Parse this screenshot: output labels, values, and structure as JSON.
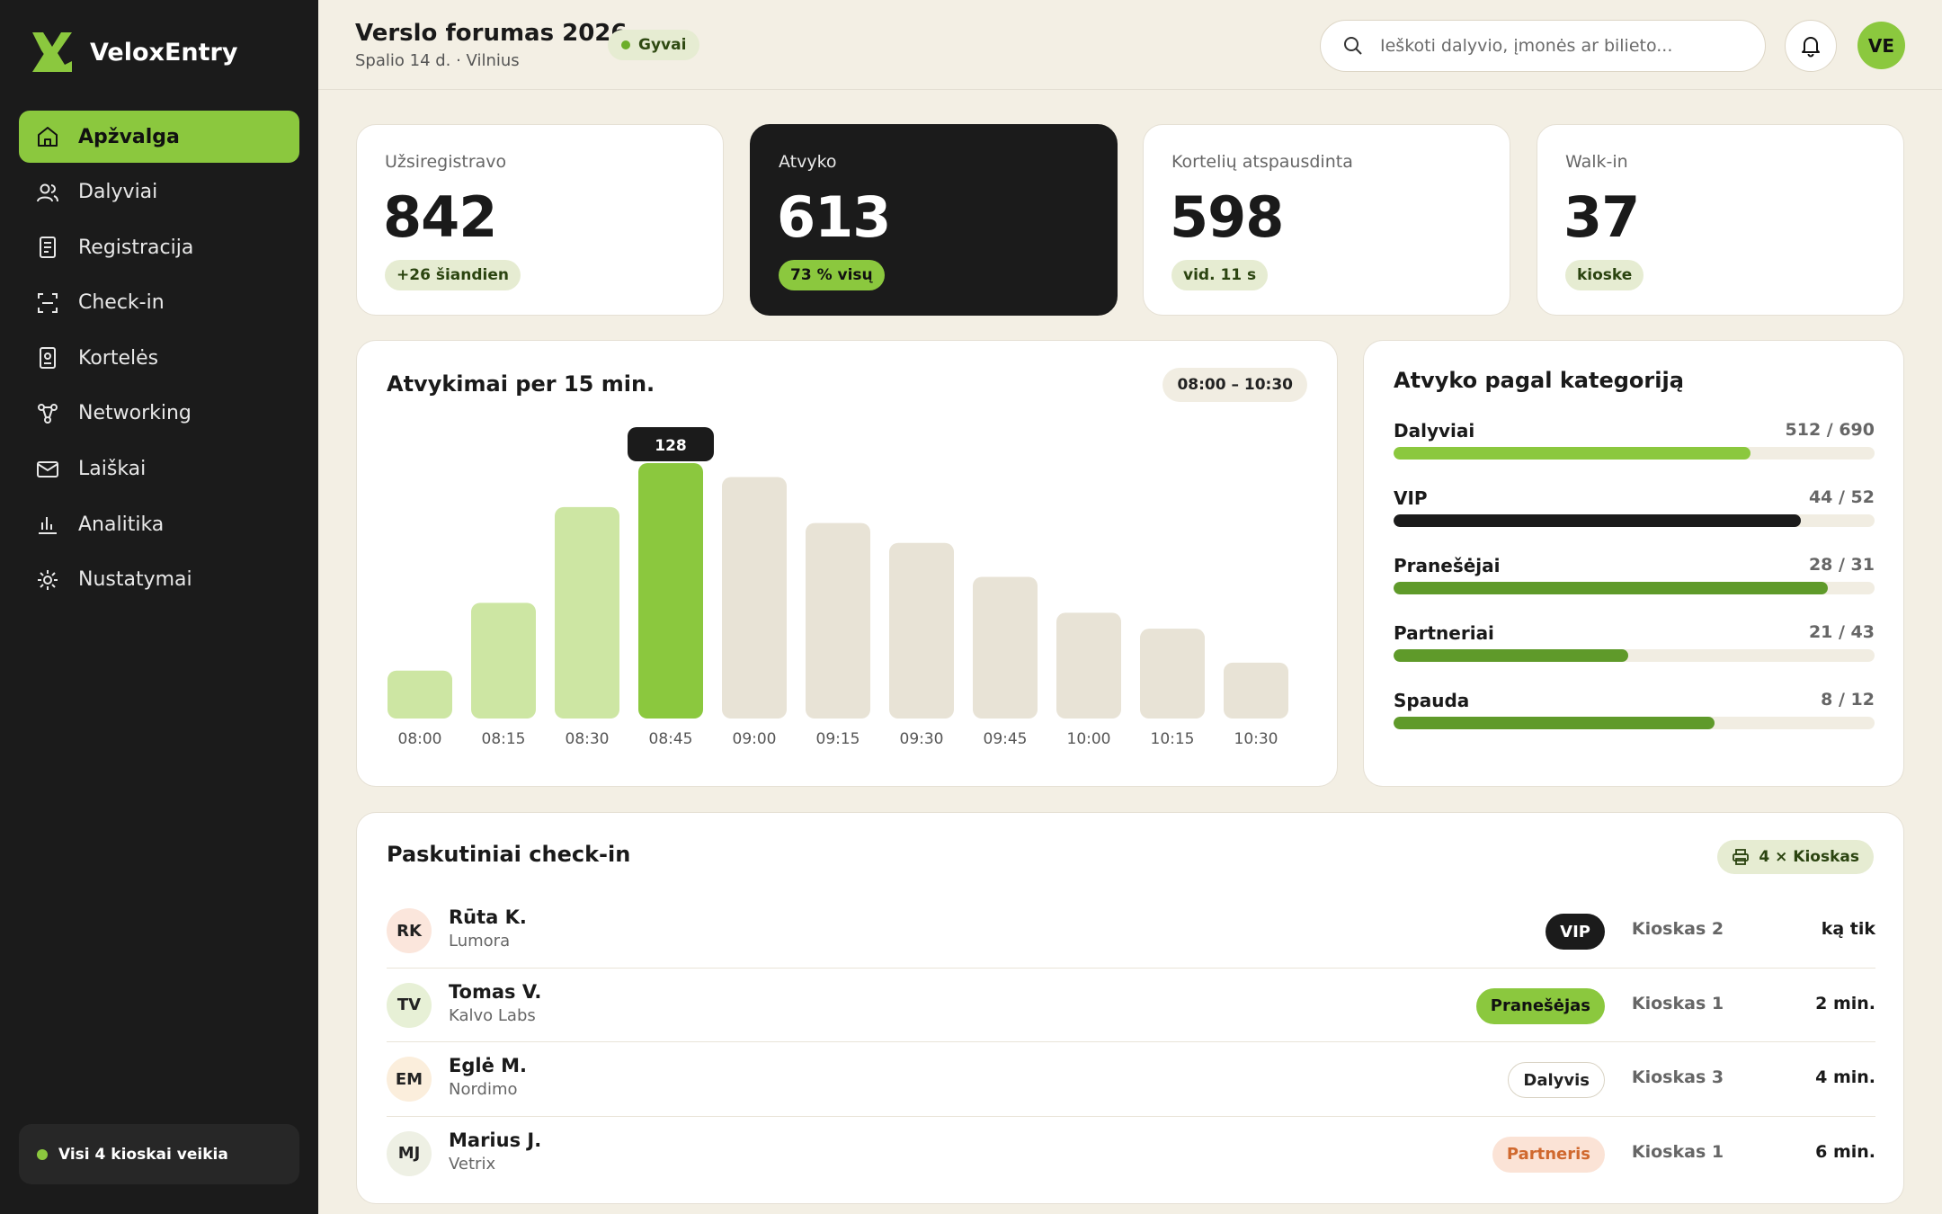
{
  "brand": {
    "name": "VeloxEntry",
    "logo_icon": "x-logo-icon",
    "accent": "#8bc83e"
  },
  "nav": [
    {
      "id": "apzvalga",
      "label": "Apžvalga",
      "icon": "home-icon",
      "active": true
    },
    {
      "id": "dalyviai",
      "label": "Dalyviai",
      "icon": "users-icon",
      "active": false
    },
    {
      "id": "registracija",
      "label": "Registracija",
      "icon": "form-icon",
      "active": false
    },
    {
      "id": "checkin",
      "label": "Check-in",
      "icon": "scan-icon",
      "active": false
    },
    {
      "id": "korteles",
      "label": "Kortelės",
      "icon": "badge-icon",
      "active": false
    },
    {
      "id": "networking",
      "label": "Networking",
      "icon": "network-icon",
      "active": false
    },
    {
      "id": "laiskai",
      "label": "Laiškai",
      "icon": "mail-icon",
      "active": false
    },
    {
      "id": "analitika",
      "label": "Analitika",
      "icon": "chart-icon",
      "active": false
    },
    {
      "id": "nustatymai",
      "label": "Nustatymai",
      "icon": "gear-icon",
      "active": false
    }
  ],
  "kiosk_status": {
    "text": "Visi 4 kioskai veikia",
    "color": "#8bc83e"
  },
  "header": {
    "title": "Verslo forumas 2026",
    "subtitle": "Spalio 14 d. · Vilnius",
    "live_label": "Gyvai",
    "search_placeholder": "Ieškoti dalyvio, įmonės ar bilieto...",
    "avatar_initials": "VE"
  },
  "stats": [
    {
      "label": "Užsiregistravo",
      "value": "842",
      "chip": "+26 šiandien"
    },
    {
      "label": "Atvyko",
      "value": "613",
      "chip": "73 % visų"
    },
    {
      "label": "Kortelių atspausdinta",
      "value": "598",
      "chip": "vid. 11 s"
    },
    {
      "label": "Walk-in",
      "value": "37",
      "chip": "kioske"
    }
  ],
  "chart": {
    "title": "Atvykimai per 15 min.",
    "range": "08:00 – 10:30"
  },
  "chart_data": {
    "type": "bar",
    "categories": [
      "08:00",
      "08:15",
      "08:30",
      "08:45",
      "09:00",
      "09:15",
      "09:30",
      "09:45",
      "10:00",
      "10:15",
      "10:30"
    ],
    "values": [
      24,
      58,
      106,
      128,
      121,
      98,
      88,
      71,
      53,
      45,
      28
    ],
    "highlight_index": 3,
    "highlight_label": "128",
    "colors": {
      "past": "#cde6a3",
      "current": "#8bc83e",
      "future": "#e8e3d6",
      "tooltip": "#1b1b1b"
    },
    "ylim": [
      0,
      128
    ]
  },
  "categories_card": {
    "title": "Atvyko pagal kategoriją",
    "items": [
      {
        "name": "Dalyviai",
        "arrived": 512,
        "total": 690,
        "text": "512 / 690",
        "color": "#8bc83e"
      },
      {
        "name": "VIP",
        "arrived": 44,
        "total": 52,
        "text": "44 / 52",
        "color": "#1b1b1b"
      },
      {
        "name": "Pranešėjai",
        "arrived": 28,
        "total": 31,
        "text": "28 / 31",
        "color": "#5f9a2a"
      },
      {
        "name": "Partneriai",
        "arrived": 21,
        "total": 43,
        "text": "21 / 43",
        "color": "#5f9a2a"
      },
      {
        "name": "Spauda",
        "arrived": 8,
        "total": 12,
        "text": "8 / 12",
        "color": "#5f9a2a"
      }
    ]
  },
  "recent": {
    "title": "Paskutiniai check-in",
    "kiosk_chip": "4 × Kioskas",
    "rows": [
      {
        "initials": "RK",
        "name": "Rūta K.",
        "org": "Lumora",
        "tag": "VIP",
        "tag_style": "vip",
        "kiosk": "Kioskas 2",
        "time": "ką tik",
        "avatar_bg": "#fbe6dc"
      },
      {
        "initials": "TV",
        "name": "Tomas V.",
        "org": "Kalvo Labs",
        "tag": "Pranešėjas",
        "tag_style": "speaker",
        "kiosk": "Kioskas 1",
        "time": "2 min.",
        "avatar_bg": "#e7f0d6"
      },
      {
        "initials": "EM",
        "name": "Eglė M.",
        "org": "Nordimo",
        "tag": "Dalyvis",
        "tag_style": "attendee",
        "kiosk": "Kioskas 3",
        "time": "4 min.",
        "avatar_bg": "#fbeedc"
      },
      {
        "initials": "MJ",
        "name": "Marius J.",
        "org": "Vetrix",
        "tag": "Partneris",
        "tag_style": "partner",
        "kiosk": "Kioskas 1",
        "time": "6 min.",
        "avatar_bg": "#eef0e4"
      }
    ]
  }
}
